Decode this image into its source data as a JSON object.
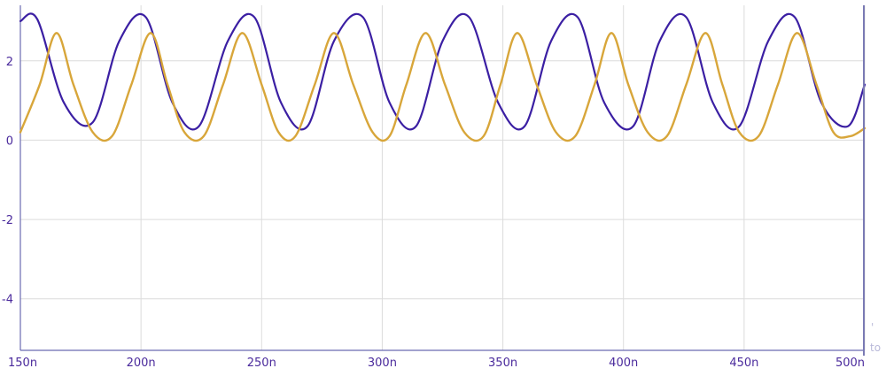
{
  "chart_data": {
    "type": "line",
    "xlabel": "",
    "ylabel": "",
    "x_unit": "n",
    "xlim": [
      150,
      500
    ],
    "ylim": [
      -5.3,
      3.4
    ],
    "xticks": [
      150,
      200,
      250,
      300,
      350,
      400,
      450,
      500
    ],
    "xtick_labels": [
      "150n",
      "200n",
      "250n",
      "300n",
      "350n",
      "400n",
      "450n",
      "500n"
    ],
    "yticks": [
      2,
      0,
      -2,
      -4
    ],
    "ytick_labels": [
      "2",
      "0",
      "-2",
      "-4"
    ],
    "grid": true,
    "series": [
      {
        "color": "#3b1fa3",
        "x": [
          150,
          157,
          168,
          180,
          191,
          202,
          213,
          224,
          236,
          247,
          258,
          269,
          280,
          292,
          303,
          314,
          325,
          336,
          348,
          359,
          370,
          381,
          392,
          404,
          415,
          426,
          437,
          448,
          460,
          471,
          482,
          493,
          500
        ],
        "y": [
          3.0,
          3.05,
          0.95,
          0.45,
          2.5,
          3.1,
          0.95,
          0.35,
          2.5,
          3.1,
          0.95,
          0.35,
          2.5,
          3.1,
          0.95,
          0.35,
          2.5,
          3.1,
          0.95,
          0.35,
          2.5,
          3.1,
          0.95,
          0.35,
          2.5,
          3.1,
          0.95,
          0.35,
          2.5,
          3.1,
          0.95,
          0.35,
          1.4
        ]
      },
      {
        "color": "#d8a63a",
        "x": [
          150,
          158,
          165,
          172,
          180,
          188,
          196,
          204,
          211,
          218,
          226,
          234,
          242,
          250,
          257,
          264,
          272,
          280,
          288,
          296,
          303,
          310,
          318,
          326,
          334,
          342,
          349,
          356,
          364,
          372,
          380,
          388,
          395,
          402,
          410,
          418,
          426,
          434,
          441,
          448,
          456,
          464,
          472,
          480,
          487,
          494,
          500
        ],
        "y": [
          0.2,
          1.4,
          2.7,
          1.4,
          0.2,
          0.1,
          1.4,
          2.7,
          1.4,
          0.2,
          0.1,
          1.4,
          2.7,
          1.4,
          0.2,
          0.1,
          1.4,
          2.7,
          1.4,
          0.2,
          0.1,
          1.4,
          2.7,
          1.4,
          0.2,
          0.1,
          1.4,
          2.7,
          1.4,
          0.2,
          0.1,
          1.4,
          2.7,
          1.4,
          0.2,
          0.1,
          1.4,
          2.7,
          1.4,
          0.2,
          0.1,
          1.4,
          2.7,
          1.4,
          0.2,
          0.1,
          0.3
        ]
      }
    ]
  },
  "right_panel": {
    "fragment_top": "'",
    "fragment_bottom": "to"
  }
}
